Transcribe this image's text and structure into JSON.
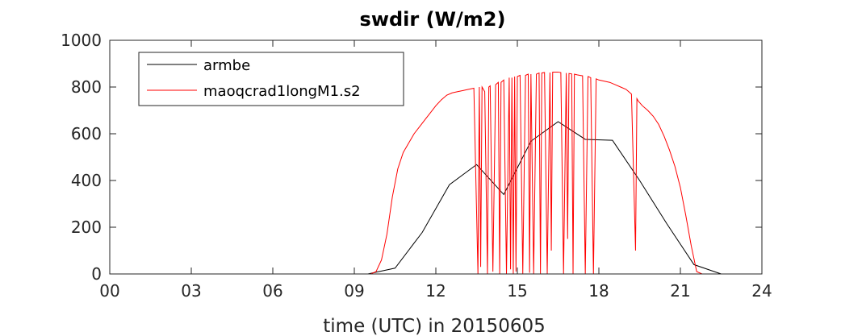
{
  "chart_data": {
    "type": "line",
    "title": "swdir  (W/m2)",
    "xlabel": "time (UTC) in 20150605",
    "ylabel": "",
    "xlim": [
      0,
      24
    ],
    "ylim": [
      0,
      1000
    ],
    "xticks": [
      0,
      3,
      6,
      9,
      12,
      15,
      18,
      21,
      24
    ],
    "xtick_labels": [
      "00",
      "03",
      "06",
      "09",
      "12",
      "15",
      "18",
      "21",
      "24"
    ],
    "yticks": [
      0,
      200,
      400,
      600,
      800,
      1000
    ],
    "ytick_labels": [
      "0",
      "200",
      "400",
      "600",
      "800",
      "1000"
    ],
    "grid": false,
    "legend_position": "top-left",
    "series": [
      {
        "name": "armbe",
        "color": "#000000",
        "x": [
          0,
          1,
          2,
          3,
          4,
          5,
          6,
          7,
          8,
          9,
          9.5,
          10.5,
          11.5,
          12.5,
          13.5,
          14.5,
          15.5,
          16.5,
          17.5,
          18.5,
          19.5,
          20.5,
          21.5,
          22.5,
          23.5,
          24
        ],
        "y": [
          0,
          0,
          0,
          0,
          0,
          0,
          0,
          0,
          0,
          0,
          0,
          25,
          178,
          382,
          468,
          340,
          568,
          652,
          576,
          572,
          400,
          215,
          40,
          0,
          0,
          0
        ]
      },
      {
        "name": "maoqcrad1longM1.s2",
        "color": "#ff0000",
        "x": [
          0,
          9.6,
          9.8,
          10.0,
          10.2,
          10.4,
          10.6,
          10.8,
          11.0,
          11.2,
          11.4,
          11.6,
          11.8,
          12.0,
          12.2,
          12.4,
          12.6,
          12.8,
          13.0,
          13.2,
          13.4,
          13.55,
          13.6,
          13.65,
          13.7,
          13.8,
          13.9,
          13.95,
          14.0,
          14.1,
          14.2,
          14.3,
          14.35,
          14.4,
          14.5,
          14.6,
          14.7,
          14.75,
          14.8,
          14.85,
          14.9,
          14.95,
          15.0,
          15.1,
          15.2,
          15.3,
          15.4,
          15.45,
          15.5,
          15.6,
          15.7,
          15.8,
          15.85,
          15.9,
          16.0,
          16.1,
          16.2,
          16.25,
          16.3,
          16.4,
          16.5,
          16.6,
          16.7,
          16.8,
          16.85,
          16.9,
          17.0,
          17.05,
          17.1,
          17.2,
          17.3,
          17.4,
          17.5,
          17.6,
          17.7,
          17.8,
          17.9,
          18.0,
          18.2,
          18.4,
          18.6,
          18.8,
          19.0,
          19.2,
          19.35,
          19.4,
          19.45,
          19.6,
          19.8,
          20.0,
          20.2,
          20.4,
          20.6,
          20.8,
          21.0,
          21.2,
          21.4,
          21.6,
          21.8,
          22.0,
          24
        ],
        "y": [
          0,
          0,
          10,
          60,
          170,
          330,
          450,
          520,
          560,
          600,
          630,
          660,
          690,
          720,
          745,
          765,
          775,
          780,
          785,
          790,
          795,
          0,
          800,
          30,
          800,
          780,
          0,
          800,
          805,
          10,
          810,
          820,
          0,
          820,
          830,
          0,
          840,
          20,
          840,
          0,
          845,
          10,
          845,
          850,
          0,
          850,
          855,
          5,
          855,
          0,
          855,
          860,
          0,
          860,
          862,
          0,
          862,
          100,
          864,
          864,
          864,
          862,
          0,
          860,
          150,
          858,
          856,
          0,
          855,
          852,
          850,
          848,
          0,
          845,
          840,
          0,
          835,
          830,
          825,
          820,
          810,
          800,
          790,
          770,
          100,
          750,
          740,
          720,
          700,
          675,
          640,
          590,
          530,
          460,
          370,
          250,
          120,
          10,
          0,
          0,
          0
        ]
      }
    ]
  }
}
